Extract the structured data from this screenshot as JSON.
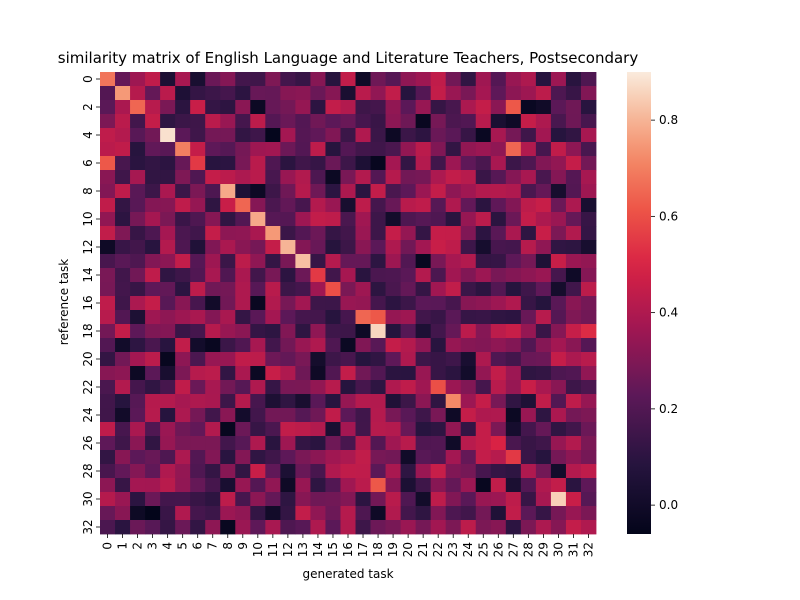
{
  "chart_data": {
    "type": "heatmap",
    "title": "similarity matrix of English Language and Literature Teachers, Postsecondary",
    "xlabel": "generated task",
    "ylabel": "reference task",
    "x_tick_labels": [
      "0",
      "1",
      "2",
      "3",
      "4",
      "5",
      "6",
      "7",
      "8",
      "9",
      "10",
      "11",
      "12",
      "13",
      "14",
      "15",
      "16",
      "17",
      "18",
      "19",
      "20",
      "21",
      "22",
      "23",
      "24",
      "25",
      "26",
      "27",
      "28",
      "29",
      "30",
      "31",
      "32"
    ],
    "y_tick_labels": [
      "0",
      "2",
      "4",
      "6",
      "8",
      "10",
      "12",
      "14",
      "16",
      "18",
      "20",
      "22",
      "24",
      "26",
      "28",
      "30",
      "32"
    ],
    "colorbar": {
      "min": -0.06,
      "max": 0.9,
      "ticks": [
        "0.0",
        "0.2",
        "0.4",
        "0.6",
        "0.8"
      ],
      "tick_values": [
        0.0,
        0.2,
        0.4,
        0.6,
        0.8
      ],
      "colormap": "rocket"
    },
    "n_rows": 33,
    "n_cols": 33,
    "diagonal_values": [
      0.68,
      0.75,
      0.65,
      0.45,
      0.88,
      0.7,
      0.55,
      0.45,
      0.78,
      0.65,
      0.78,
      0.75,
      0.8,
      0.82,
      0.55,
      0.6,
      0.35,
      0.65,
      0.86,
      0.45,
      0.4,
      0.35,
      0.6,
      0.72,
      0.45,
      0.45,
      0.5,
      0.55,
      0.4,
      0.4,
      0.85,
      0.35,
      0.4
    ],
    "notable_cells": [
      {
        "row": 1,
        "col": 1,
        "value": 0.75
      },
      {
        "row": 2,
        "col": 27,
        "value": 0.62
      },
      {
        "row": 4,
        "col": 4,
        "value": 0.88
      },
      {
        "row": 4,
        "col": 11,
        "value": -0.05
      },
      {
        "row": 4,
        "col": 25,
        "value": -0.03
      },
      {
        "row": 5,
        "col": 27,
        "value": 0.65
      },
      {
        "row": 6,
        "col": 0,
        "value": 0.62
      },
      {
        "row": 17,
        "col": 18,
        "value": 0.62
      },
      {
        "row": 18,
        "col": 18,
        "value": 0.86
      },
      {
        "row": 18,
        "col": 32,
        "value": 0.52
      },
      {
        "row": 23,
        "col": 23,
        "value": 0.72
      },
      {
        "row": 29,
        "col": 18,
        "value": 0.62
      },
      {
        "row": 30,
        "col": 30,
        "value": 0.85
      },
      {
        "row": 31,
        "col": 3,
        "value": -0.06
      }
    ]
  }
}
